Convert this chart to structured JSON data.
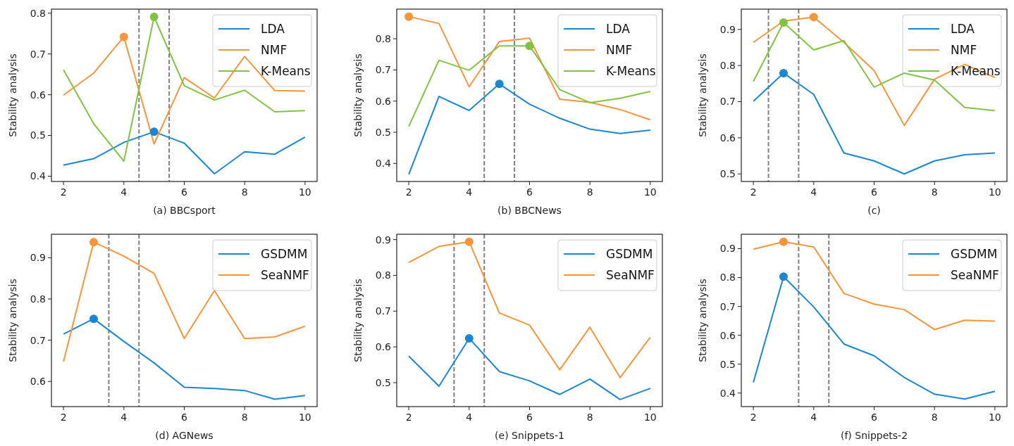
{
  "chart_data": [
    {
      "type": "line",
      "xlabel": "(a) BBCsport",
      "ylabel": "Stability analysis",
      "x": [
        2,
        3,
        4,
        5,
        6,
        7,
        8,
        9,
        10
      ],
      "xlim": [
        1.6,
        10.4
      ],
      "xticks": [
        2,
        4,
        6,
        8,
        10
      ],
      "ylim": [
        0.387,
        0.81
      ],
      "yticks": [
        0.4,
        0.5,
        0.6,
        0.7,
        0.8
      ],
      "legend": "top right",
      "ref_lines": [
        {
          "axis": "x",
          "value": 4.5,
          "color": "#808080",
          "line_style": "dashed"
        },
        {
          "axis": "x",
          "value": 5.5,
          "color": "#808080",
          "line_style": "dashed"
        }
      ],
      "series": [
        {
          "name": "LDA",
          "color": "#1a87d0",
          "values": [
            0.427,
            0.443,
            0.483,
            0.509,
            0.481,
            0.406,
            0.46,
            0.454,
            0.496
          ]
        },
        {
          "name": "NMF",
          "color": "#f7953a",
          "values": [
            0.599,
            0.653,
            0.742,
            0.479,
            0.642,
            0.592,
            0.694,
            0.61,
            0.609
          ]
        },
        {
          "name": "K-Means",
          "color": "#82c341",
          "values": [
            0.661,
            0.529,
            0.437,
            0.791,
            0.622,
            0.587,
            0.611,
            0.558,
            0.561
          ]
        },
        {
          "type": "scatter",
          "marker": "circle",
          "color": "#1a87d0",
          "x": [
            5
          ],
          "values": [
            0.509
          ]
        },
        {
          "type": "scatter",
          "marker": "circle",
          "color": "#f7953a",
          "x": [
            4
          ],
          "values": [
            0.742
          ]
        },
        {
          "type": "scatter",
          "marker": "circle",
          "color": "#82c341",
          "x": [
            5
          ],
          "values": [
            0.791
          ]
        }
      ]
    },
    {
      "type": "line",
      "xlabel": "(b) BBCNews",
      "ylabel": "Stability analysis",
      "x": [
        2,
        3,
        4,
        5,
        6,
        7,
        8,
        9,
        10
      ],
      "xlim": [
        1.6,
        10.4
      ],
      "xticks": [
        2,
        4,
        6,
        8,
        10
      ],
      "ylim": [
        0.342,
        0.895
      ],
      "yticks": [
        0.4,
        0.5,
        0.6,
        0.7,
        0.8
      ],
      "legend": "top right",
      "ref_lines": [
        {
          "axis": "x",
          "value": 4.5,
          "color": "#808080",
          "line_style": "dashed"
        },
        {
          "axis": "x",
          "value": 5.5,
          "color": "#808080",
          "line_style": "dashed"
        }
      ],
      "series": [
        {
          "name": "LDA",
          "color": "#1a87d0",
          "values": [
            0.365,
            0.615,
            0.57,
            0.655,
            0.59,
            0.545,
            0.51,
            0.496,
            0.507
          ]
        },
        {
          "name": "NMF",
          "color": "#f7953a",
          "values": [
            0.871,
            0.849,
            0.646,
            0.791,
            0.802,
            0.606,
            0.596,
            0.573,
            0.54
          ]
        },
        {
          "name": "K-Means",
          "color": "#82c341",
          "values": [
            0.519,
            0.731,
            0.699,
            0.777,
            0.777,
            0.637,
            0.595,
            0.609,
            0.631
          ]
        },
        {
          "type": "scatter",
          "marker": "circle",
          "color": "#f7953a",
          "x": [
            2
          ],
          "values": [
            0.871
          ]
        },
        {
          "type": "scatter",
          "marker": "circle",
          "color": "#1a87d0",
          "x": [
            5
          ],
          "values": [
            0.655
          ]
        },
        {
          "type": "scatter",
          "marker": "circle",
          "color": "#82c341",
          "x": [
            6
          ],
          "values": [
            0.777
          ]
        }
      ]
    },
    {
      "type": "line",
      "xlabel": "(c)",
      "ylabel": "Stability analysis",
      "x": [
        2,
        3,
        4,
        5,
        6,
        7,
        8,
        9,
        10
      ],
      "xlim": [
        1.6,
        10.4
      ],
      "xticks": [
        2,
        4,
        6,
        8,
        10
      ],
      "ylim": [
        0.479,
        0.956
      ],
      "yticks": [
        0.5,
        0.6,
        0.7,
        0.8,
        0.9
      ],
      "legend": "top right",
      "ref_lines": [
        {
          "axis": "x",
          "value": 2.5,
          "color": "#808080",
          "line_style": "dashed"
        },
        {
          "axis": "x",
          "value": 3.5,
          "color": "#808080",
          "line_style": "dashed"
        }
      ],
      "series": [
        {
          "name": "LDA",
          "color": "#1a87d0",
          "values": [
            0.701,
            0.779,
            0.72,
            0.558,
            0.536,
            0.5,
            0.536,
            0.553,
            0.558
          ]
        },
        {
          "name": "NMF",
          "color": "#f7953a",
          "values": [
            0.864,
            0.923,
            0.934,
            0.864,
            0.786,
            0.634,
            0.762,
            0.803,
            0.767
          ]
        },
        {
          "name": "K-Means",
          "color": "#82c341",
          "values": [
            0.756,
            0.919,
            0.843,
            0.869,
            0.74,
            0.779,
            0.76,
            0.684,
            0.675
          ]
        },
        {
          "type": "scatter",
          "marker": "circle",
          "color": "#1a87d0",
          "x": [
            3
          ],
          "values": [
            0.779
          ]
        },
        {
          "type": "scatter",
          "marker": "circle",
          "color": "#f7953a",
          "x": [
            4
          ],
          "values": [
            0.934
          ]
        },
        {
          "type": "scatter",
          "marker": "circle",
          "color": "#82c341",
          "x": [
            3
          ],
          "values": [
            0.919
          ]
        }
      ]
    },
    {
      "type": "line",
      "xlabel": "(d) AGNews",
      "ylabel": "Stability analysis",
      "x": [
        2,
        3,
        4,
        5,
        6,
        7,
        8,
        9,
        10
      ],
      "xlim": [
        1.6,
        10.4
      ],
      "xticks": [
        2,
        4,
        6,
        8,
        10
      ],
      "ylim": [
        0.539,
        0.957
      ],
      "yticks": [
        0.6,
        0.7,
        0.8,
        0.9
      ],
      "legend": "top right",
      "ref_lines": [
        {
          "axis": "x",
          "value": 3.5,
          "color": "#808080",
          "line_style": "dashed"
        },
        {
          "axis": "x",
          "value": 4.5,
          "color": "#808080",
          "line_style": "dashed"
        }
      ],
      "series": [
        {
          "name": "GSDMM",
          "color": "#1a87d0",
          "values": [
            0.715,
            0.752,
            0.697,
            0.645,
            0.586,
            0.583,
            0.578,
            0.557,
            0.566
          ]
        },
        {
          "name": "SeaNMF",
          "color": "#f7953a",
          "values": [
            0.648,
            0.938,
            0.904,
            0.862,
            0.704,
            0.82,
            0.704,
            0.708,
            0.734
          ]
        },
        {
          "type": "scatter",
          "marker": "circle",
          "color": "#1a87d0",
          "x": [
            3
          ],
          "values": [
            0.752
          ]
        },
        {
          "type": "scatter",
          "marker": "circle",
          "color": "#f7953a",
          "x": [
            3
          ],
          "values": [
            0.938
          ]
        }
      ]
    },
    {
      "type": "line",
      "xlabel": "(e) Snippets-1",
      "ylabel": "Stability analysis",
      "x": [
        2,
        3,
        4,
        5,
        6,
        7,
        8,
        9,
        10
      ],
      "xlim": [
        1.6,
        10.4
      ],
      "xticks": [
        2,
        4,
        6,
        8,
        10
      ],
      "ylim": [
        0.433,
        0.915
      ],
      "yticks": [
        0.5,
        0.6,
        0.7,
        0.8,
        0.9
      ],
      "legend": "top right",
      "ref_lines": [
        {
          "axis": "x",
          "value": 3.5,
          "color": "#808080",
          "line_style": "dashed"
        },
        {
          "axis": "x",
          "value": 4.5,
          "color": "#808080",
          "line_style": "dashed"
        }
      ],
      "series": [
        {
          "name": "GSDMM",
          "color": "#1a87d0",
          "values": [
            0.574,
            0.49,
            0.624,
            0.531,
            0.505,
            0.467,
            0.51,
            0.453,
            0.484
          ]
        },
        {
          "name": "SeaNMF",
          "color": "#f7953a",
          "values": [
            0.836,
            0.881,
            0.894,
            0.695,
            0.661,
            0.536,
            0.655,
            0.514,
            0.627
          ]
        },
        {
          "type": "scatter",
          "marker": "circle",
          "color": "#1a87d0",
          "x": [
            4
          ],
          "values": [
            0.624
          ]
        },
        {
          "type": "scatter",
          "marker": "circle",
          "color": "#f7953a",
          "x": [
            4
          ],
          "values": [
            0.894
          ]
        }
      ]
    },
    {
      "type": "line",
      "xlabel": "(f) Snippets-2",
      "ylabel": "Stability analysis",
      "x": [
        2,
        3,
        4,
        5,
        6,
        7,
        8,
        9,
        10
      ],
      "xlim": [
        1.6,
        10.4
      ],
      "xticks": [
        2,
        4,
        6,
        8,
        10
      ],
      "ylim": [
        0.353,
        0.95
      ],
      "yticks": [
        0.4,
        0.5,
        0.6,
        0.7,
        0.8,
        0.9
      ],
      "legend": "top right",
      "ref_lines": [
        {
          "axis": "x",
          "value": 3.5,
          "color": "#808080",
          "line_style": "dashed"
        },
        {
          "axis": "x",
          "value": 4.5,
          "color": "#808080",
          "line_style": "dashed"
        }
      ],
      "series": [
        {
          "name": "GSDMM",
          "color": "#1a87d0",
          "values": [
            0.437,
            0.803,
            0.698,
            0.57,
            0.529,
            0.454,
            0.396,
            0.379,
            0.406
          ]
        },
        {
          "name": "SeaNMF",
          "color": "#f7953a",
          "values": [
            0.898,
            0.924,
            0.906,
            0.745,
            0.708,
            0.689,
            0.62,
            0.652,
            0.649
          ]
        },
        {
          "type": "scatter",
          "marker": "circle",
          "color": "#1a87d0",
          "x": [
            3
          ],
          "values": [
            0.803
          ]
        },
        {
          "type": "scatter",
          "marker": "circle",
          "color": "#f7953a",
          "x": [
            3
          ],
          "values": [
            0.924
          ]
        }
      ]
    }
  ]
}
